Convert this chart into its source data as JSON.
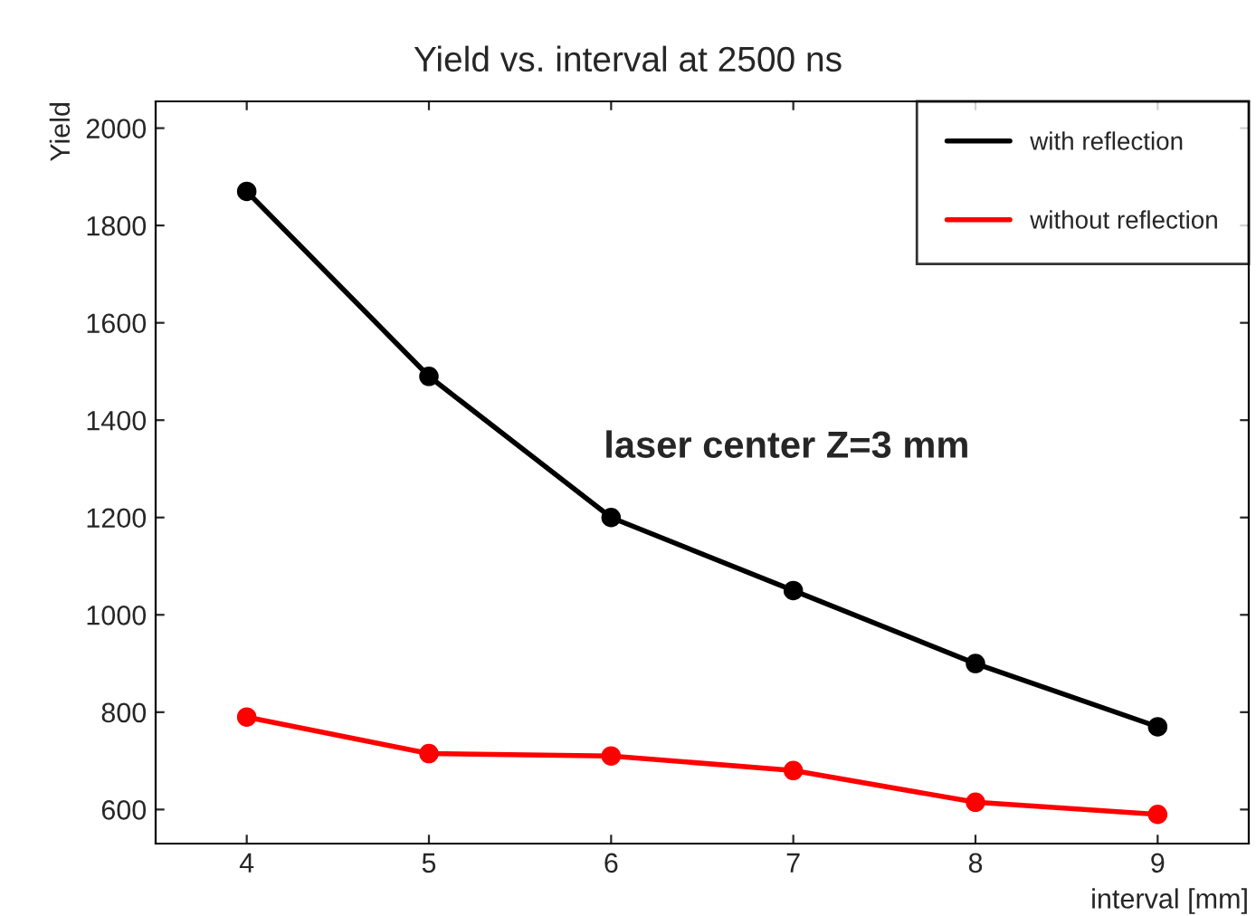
{
  "chart_data": {
    "type": "line",
    "title": "Yield vs. interval at 2500 ns",
    "xlabel": "interval [mm]",
    "ylabel": "Yield",
    "x": [
      4,
      5,
      6,
      7,
      8,
      9
    ],
    "series": [
      {
        "name": "with reflection",
        "color": "#000000",
        "values": [
          1870,
          1490,
          1200,
          1050,
          900,
          770
        ]
      },
      {
        "name": "without reflection",
        "color": "#ff0000",
        "values": [
          790,
          715,
          710,
          680,
          615,
          590
        ]
      }
    ],
    "xlim": [
      3.5,
      9.5
    ],
    "xticks": [
      4,
      5,
      6,
      7,
      8,
      9
    ],
    "ylim": [
      530,
      2055
    ],
    "yticks": [
      600,
      800,
      1000,
      1200,
      1400,
      1600,
      1800,
      2000
    ],
    "annotations": [
      "laser center Z=3 mm"
    ],
    "marker": "circle",
    "line_style": "solid",
    "legend": "top right",
    "grid": false
  }
}
